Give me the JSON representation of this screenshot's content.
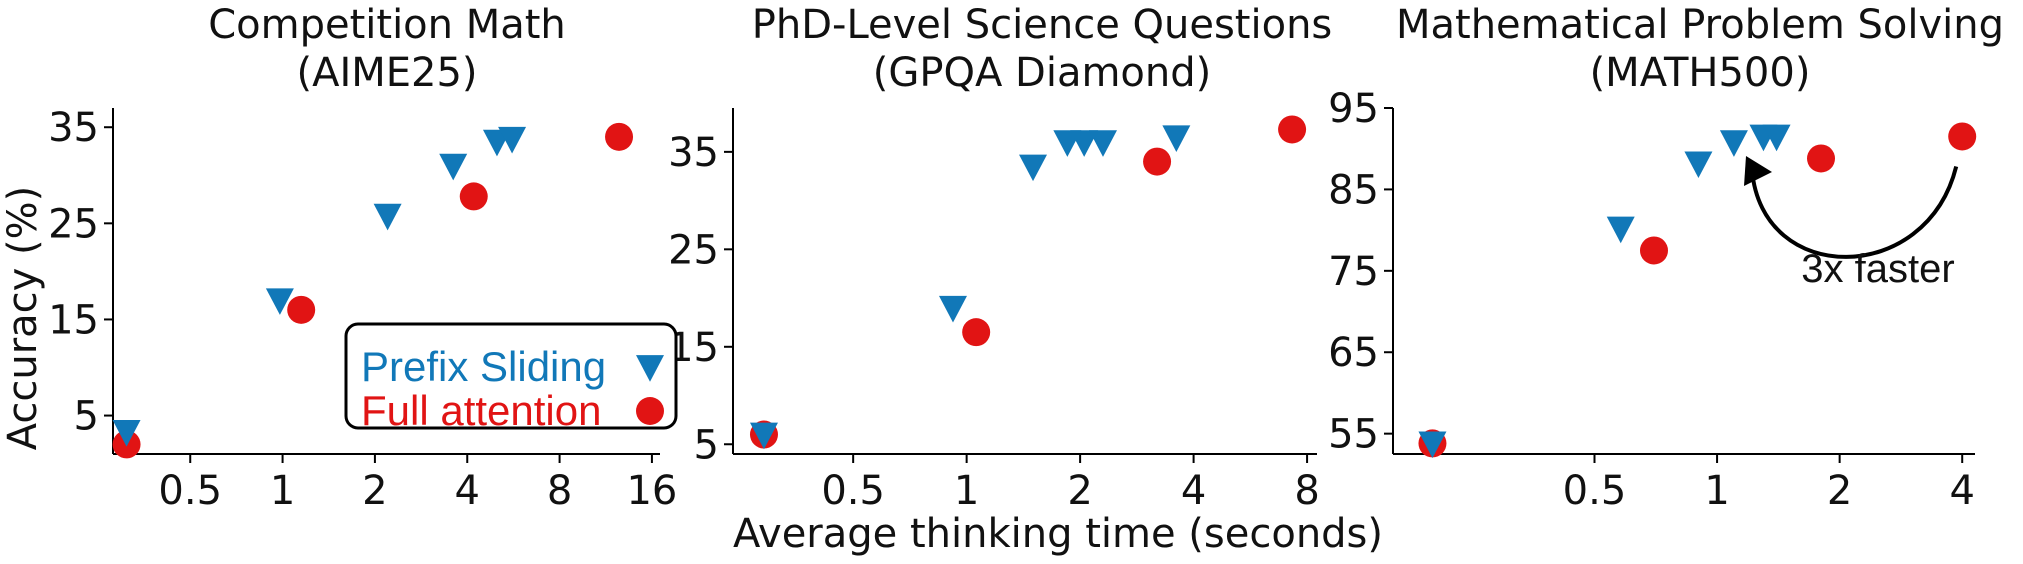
{
  "figure": {
    "xlabel": "Average thinking time (seconds)",
    "ylabel": "Accuracy (%)",
    "legend": [
      {
        "label": "Prefix Sliding",
        "color": "#1178b8",
        "marker": "triangle-down"
      },
      {
        "label": "Full attention",
        "color": "#e11414",
        "marker": "circle"
      }
    ]
  },
  "chart_data": [
    {
      "type": "scatter",
      "title_line1": "Competition Math",
      "title_line2": "(AIME25)",
      "x_scale": "log2",
      "xlim": [
        0.28,
        17
      ],
      "ylim": [
        1,
        37
      ],
      "xticks": [
        0.5,
        1,
        2,
        4,
        8,
        16
      ],
      "xtick_labels": [
        "0.5",
        "1",
        "2",
        "4",
        "8",
        "16"
      ],
      "yticks": [
        5,
        15,
        25,
        35
      ],
      "ytick_labels": [
        "5",
        "15",
        "25",
        "35"
      ],
      "legend_position": "lower-right",
      "series": [
        {
          "name": "Prefix Sliding",
          "x": [
            0.31,
            0.98,
            2.2,
            3.6,
            5.0,
            5.6
          ],
          "y": [
            3.3,
            17.0,
            25.8,
            31.0,
            33.5,
            33.8
          ]
        },
        {
          "name": "Full attention",
          "x": [
            0.31,
            1.15,
            4.2,
            12.5
          ],
          "y": [
            2.0,
            16.0,
            27.8,
            34.0
          ]
        }
      ]
    },
    {
      "type": "scatter",
      "title_line1": "PhD-Level Science Questions",
      "title_line2": "(GPQA Diamond)",
      "x_scale": "log2",
      "xlim": [
        0.24,
        8.5
      ],
      "ylim": [
        4,
        39.5
      ],
      "xticks": [
        0.5,
        1,
        2,
        4,
        8
      ],
      "xtick_labels": [
        "0.5",
        "1",
        "2",
        "4",
        "8"
      ],
      "yticks": [
        5,
        15,
        25,
        35
      ],
      "ytick_labels": [
        "5",
        "15",
        "25",
        "35"
      ],
      "series": [
        {
          "name": "Prefix Sliding",
          "x": [
            0.29,
            0.92,
            1.5,
            1.85,
            2.05,
            2.3,
            3.6
          ],
          "y": [
            6.0,
            19.0,
            33.5,
            36.0,
            36.0,
            36.0,
            36.5
          ]
        },
        {
          "name": "Full attention",
          "x": [
            0.29,
            1.06,
            3.2,
            7.3
          ],
          "y": [
            6.0,
            16.5,
            34.0,
            37.3
          ]
        }
      ]
    },
    {
      "type": "scatter",
      "title_line1": "Mathematical Problem Solving",
      "title_line2": "(MATH500)",
      "x_scale": "log2",
      "xlim": [
        0.16,
        4.3
      ],
      "ylim": [
        52.5,
        95
      ],
      "xticks": [
        0.5,
        1,
        2,
        4
      ],
      "xtick_labels": [
        "0.5",
        "1",
        "2",
        "4"
      ],
      "yticks": [
        55,
        65,
        75,
        85,
        95
      ],
      "ytick_labels": [
        "55",
        "65",
        "75",
        "85",
        "95"
      ],
      "annotation": "3x faster",
      "series": [
        {
          "name": "Prefix Sliding",
          "x": [
            0.2,
            0.58,
            0.9,
            1.1,
            1.3,
            1.4
          ],
          "y": [
            53.8,
            80.2,
            88.2,
            90.8,
            91.5,
            91.5
          ]
        },
        {
          "name": "Full attention",
          "x": [
            0.2,
            0.7,
            1.8,
            4.0
          ],
          "y": [
            53.8,
            77.5,
            88.8,
            91.5
          ]
        }
      ]
    }
  ]
}
